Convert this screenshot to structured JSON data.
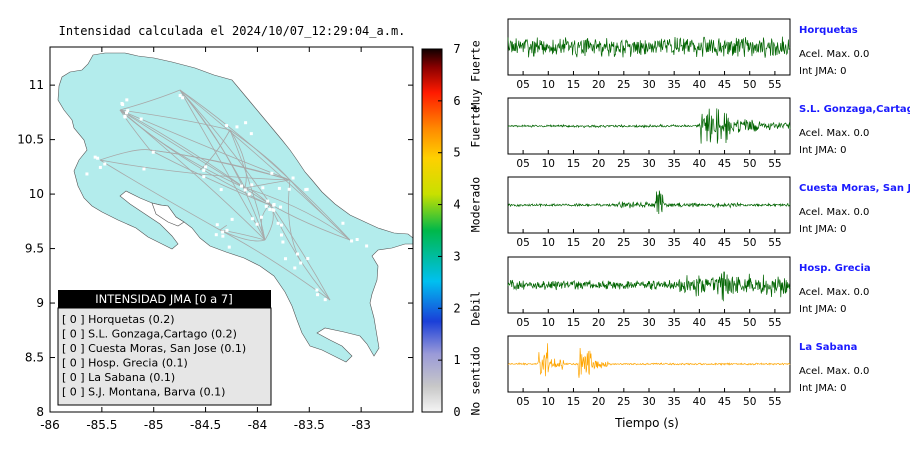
{
  "map": {
    "title": "Intensidad calculada el 2024/10/07_12:29:04_a.m.",
    "x_ticks": [
      -86,
      -85.5,
      -85,
      -84.5,
      -84,
      -83.5,
      -83
    ],
    "x_tick_labels": [
      "-86",
      "-85.5",
      "-85",
      "-84.5",
      "-84",
      "-83.5",
      "-83"
    ],
    "y_ticks": [
      8,
      8.5,
      9,
      9.5,
      10,
      10.5,
      11
    ],
    "y_tick_labels": [
      "8",
      "8.5",
      "9",
      "9.5",
      "10",
      "10.5",
      "11"
    ],
    "xlim": [
      -86,
      -82.5
    ],
    "ylim": [
      8,
      11.35
    ],
    "colors": {
      "land": "#b3ecec",
      "roads": "#a8a8a8",
      "stations": "#ffffff",
      "sea": "#ffffff"
    }
  },
  "colorbar": {
    "tick_labels": [
      "0",
      "1",
      "2",
      "3",
      "4",
      "5",
      "6",
      "7"
    ],
    "range": [
      0,
      7
    ],
    "category_labels": [
      "No sentido",
      "Debil",
      "Moderado",
      "Fuerte",
      "Muy Fuerte"
    ],
    "category_values": [
      0.6,
      2,
      4,
      5.5,
      6.5
    ]
  },
  "legend": {
    "title": "INTENSIDAD JMA [0 a 7]",
    "items": [
      {
        "label": "[ 0 ]  Horquetas (0.2)"
      },
      {
        "label": "[ 0 ]  S.L. Gonzaga,Cartago (0.2)"
      },
      {
        "label": "[ 0 ]  Cuesta Moras, San Jose (0.1)"
      },
      {
        "label": "[ 0 ]  Hosp. Grecia (0.1)"
      },
      {
        "label": "[ 0 ]  La Sabana (0.1)"
      },
      {
        "label": "[ 0 ]  S.J. Montana, Barva (0.1)"
      }
    ]
  },
  "waveforms": {
    "xlabel": "Tiempo (s)",
    "xlim": [
      2,
      58
    ],
    "x_ticks": [
      5,
      10,
      15,
      20,
      25,
      30,
      35,
      40,
      45,
      50,
      55
    ],
    "x_tick_labels": [
      "05",
      "10",
      "15",
      "20",
      "25",
      "30",
      "35",
      "40",
      "45",
      "50",
      "55"
    ],
    "panels": [
      {
        "station": "Horquetas",
        "acel": "Acel. Max. 0.0",
        "jma": "Int JMA: 0",
        "color": "#006400",
        "bursts": [
          [
            0,
            60,
            0.45
          ],
          [
            38,
            58,
            0.25
          ]
        ],
        "seed": 3
      },
      {
        "station": "S.L. Gonzaga,Cartago",
        "acel": "Acel. Max. 0.0",
        "jma": "Int JMA: 0",
        "color": "#006400",
        "bursts": [
          [
            0,
            60,
            0.05
          ],
          [
            14,
            36,
            0.06
          ],
          [
            40,
            46,
            0.8
          ],
          [
            46,
            52,
            0.35
          ],
          [
            52,
            58,
            0.2
          ]
        ],
        "seed": 7
      },
      {
        "station": "Cuesta Moras, San Jose",
        "acel": "Acel. Max. 0.0",
        "jma": "Int JMA: 0",
        "color": "#006400",
        "bursts": [
          [
            0,
            60,
            0.06
          ],
          [
            24,
            31,
            0.15
          ],
          [
            31,
            33,
            0.95
          ],
          [
            33,
            40,
            0.1
          ],
          [
            42,
            48,
            0.12
          ]
        ],
        "seed": 11
      },
      {
        "station": "Hosp. Grecia",
        "acel": "Acel. Max. 0.0",
        "jma": "Int JMA: 0",
        "color": "#006400",
        "bursts": [
          [
            0,
            60,
            0.22
          ],
          [
            36,
            58,
            0.5
          ],
          [
            44,
            46,
            0.85
          ]
        ],
        "seed": 19
      },
      {
        "station": "La Sabana",
        "acel": "Acel. Max. 0.0",
        "jma": "Int JMA: 0",
        "color": "#ffa500",
        "bursts": [
          [
            0,
            60,
            0.04
          ],
          [
            8,
            10,
            0.9
          ],
          [
            10,
            13,
            0.3
          ],
          [
            16,
            18.5,
            0.75
          ],
          [
            18.5,
            22,
            0.2
          ]
        ],
        "seed": 23
      }
    ]
  }
}
